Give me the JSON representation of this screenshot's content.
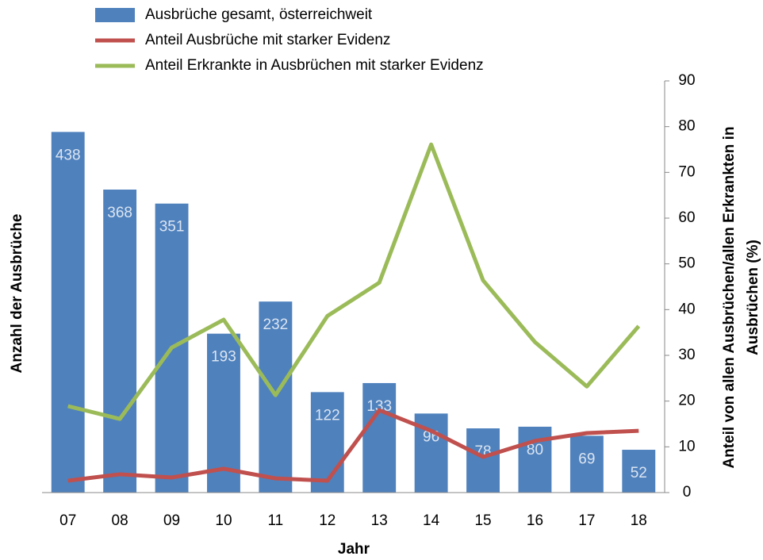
{
  "chart_data": {
    "type": "bar",
    "categories": [
      "07",
      "08",
      "09",
      "10",
      "11",
      "12",
      "13",
      "14",
      "15",
      "16",
      "17",
      "18"
    ],
    "series": [
      {
        "name": "Ausbrüche gesamt, österreichweit",
        "type": "bar",
        "color": "#4f81bd",
        "axis": "y",
        "values": [
          438,
          368,
          351,
          193,
          232,
          122,
          133,
          96,
          78,
          80,
          69,
          52
        ]
      },
      {
        "name": "Anteil Ausbrüche mit starker Evidenz",
        "type": "line",
        "color": "#c0504d",
        "axis": "y2",
        "values": [
          2.6,
          4,
          3.3,
          5.2,
          3.1,
          2.6,
          18,
          13.5,
          7.8,
          11.3,
          13,
          13.5
        ]
      },
      {
        "name": "Anteil Erkrankte in Ausbrüchen mit starker Evidenz",
        "type": "line",
        "color": "#9bbb59",
        "axis": "y2",
        "values": [
          18.9,
          16.1,
          31.7,
          37.8,
          21.3,
          38.6,
          45.9,
          76.1,
          46.4,
          32.9,
          23.2,
          36.4
        ]
      }
    ],
    "xlabel": "Jahr",
    "ylabel": "Anzahl der Ausbrüche",
    "y2label": [
      "Anteil von allen Ausbrüchen/allen Erkrankten in",
      "Ausbrüchen (%)"
    ],
    "ylim": [
      0,
      500
    ],
    "y2lim": [
      0,
      90
    ],
    "y2ticks": [
      0,
      10,
      20,
      30,
      40,
      50,
      60,
      70,
      80,
      90
    ]
  }
}
